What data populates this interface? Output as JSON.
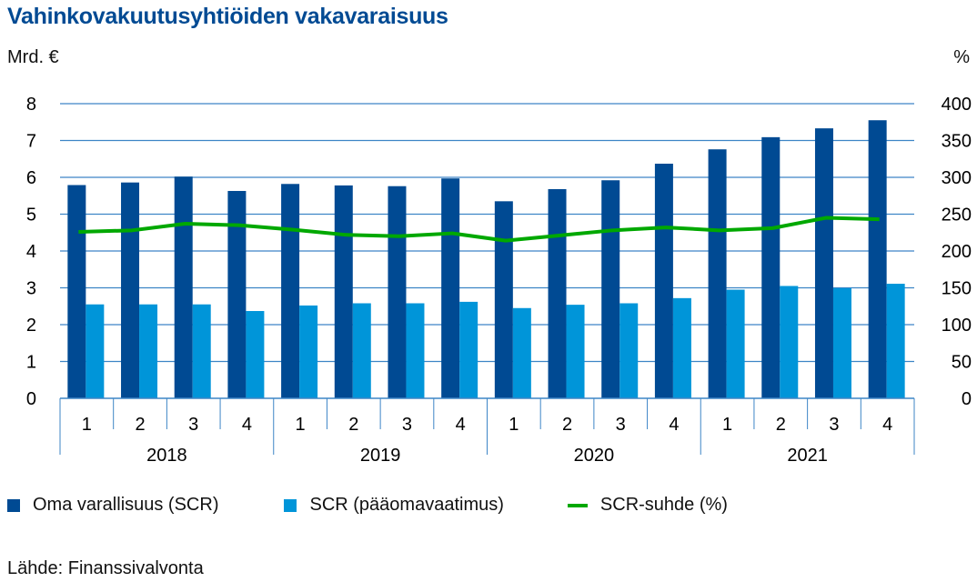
{
  "chart_data": {
    "type": "bar",
    "title": "Vahinkovakuutusyhtiöiden vakavaraisuus",
    "ylabel_left": "Mrd. €",
    "ylabel_right": "%",
    "ylim_left": [
      0,
      8
    ],
    "ylim_right": [
      0,
      400
    ],
    "yticks_left": [
      "0",
      "1",
      "2",
      "3",
      "4",
      "5",
      "6",
      "7",
      "8"
    ],
    "yticks_right": [
      "0",
      "50",
      "100",
      "150",
      "200",
      "250",
      "300",
      "350",
      "400"
    ],
    "grid": true,
    "legend_placement": "bottom",
    "categories": [
      "1",
      "2",
      "3",
      "4",
      "1",
      "2",
      "3",
      "4",
      "1",
      "2",
      "3",
      "4",
      "1",
      "2",
      "3",
      "4"
    ],
    "years": [
      "2018",
      "2019",
      "2020",
      "2021"
    ],
    "series": [
      {
        "name": "Oma varallisuus (SCR)",
        "type": "bar",
        "axis": "left",
        "color": "#004a93",
        "values": [
          5.79,
          5.86,
          6.02,
          5.63,
          5.82,
          5.78,
          5.76,
          5.97,
          5.35,
          5.68,
          5.92,
          6.37,
          6.76,
          7.09,
          7.33,
          7.55
        ]
      },
      {
        "name": "SCR (pääomavaatimus)",
        "type": "bar",
        "axis": "left",
        "color": "#0095d9",
        "values": [
          2.55,
          2.55,
          2.55,
          2.37,
          2.52,
          2.58,
          2.58,
          2.62,
          2.45,
          2.54,
          2.58,
          2.72,
          2.95,
          3.05,
          2.99,
          3.11
        ]
      },
      {
        "name": "SCR-suhde (%)",
        "type": "line",
        "axis": "right",
        "color": "#00a800",
        "values": [
          226,
          228,
          237,
          235,
          229,
          222,
          220,
          224,
          214,
          221,
          228,
          232,
          228,
          231,
          245,
          243
        ]
      }
    ],
    "source": "Lähde: Finanssivalvonta",
    "gridline_color": "#3d85c6"
  }
}
